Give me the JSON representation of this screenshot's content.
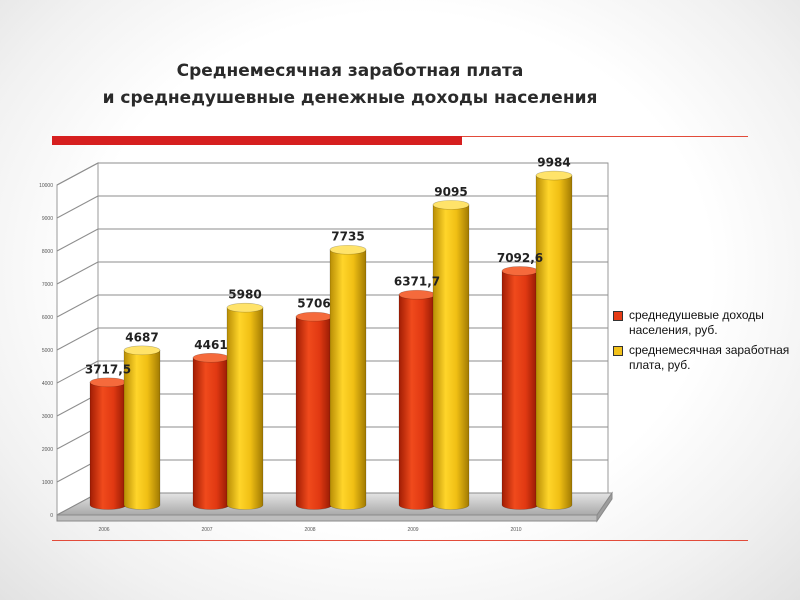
{
  "chart_data": {
    "type": "bar",
    "title_lines": [
      "Среднемесячная заработная плата",
      "и среднедушевные денежные доходы населения"
    ],
    "categories": [
      "2006",
      "2007",
      "2008",
      "2009",
      "2010"
    ],
    "series": [
      {
        "name": "среднедушевые доходы населения, руб.",
        "color": "#e63c16",
        "values": [
          3717.5,
          4461,
          5706,
          6371.7,
          7092.6
        ],
        "labels": [
          "3717,5",
          "4461",
          "5706",
          "6371,7",
          "7092,6"
        ]
      },
      {
        "name": "среднемесячная заработная плата, руб.",
        "color": "#f2c11a",
        "values": [
          4687,
          5980,
          7735,
          9095,
          9984
        ],
        "labels": [
          "4687",
          "5980",
          "7735",
          "9095",
          "9984"
        ]
      }
    ],
    "y_ticks": [
      "0",
      "1000",
      "2000",
      "3000",
      "4000",
      "5000",
      "6000",
      "7000",
      "8000",
      "9000",
      "10000"
    ],
    "ylim": [
      0,
      10000
    ],
    "grid": true,
    "legend_position": "right"
  },
  "colors": {
    "accent_red": "#d61f1f"
  }
}
